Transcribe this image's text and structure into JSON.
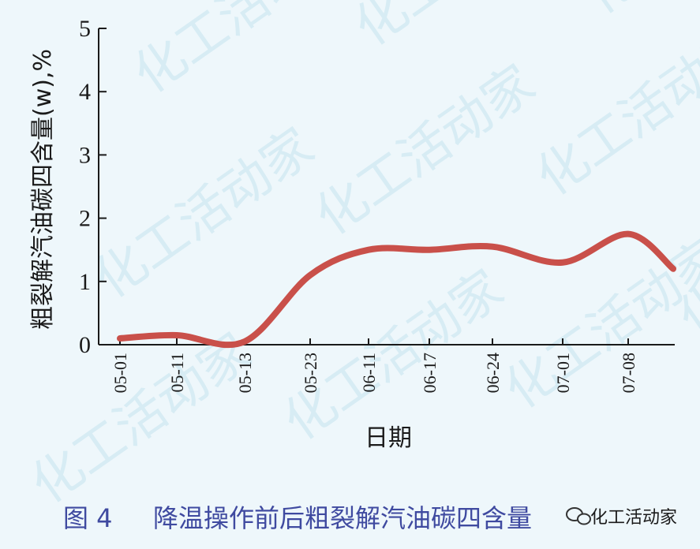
{
  "chart_data": {
    "type": "line",
    "x_categories": [
      "05-01",
      "05-11",
      "05-13",
      "05-23",
      "06-11",
      "06-17",
      "06-24",
      "07-01",
      "07-08"
    ],
    "series": [
      {
        "x": [
          "05-01",
          "05-11",
          "05-13",
          "05-23",
          "06-11",
          "06-17",
          "06-24",
          "07-01",
          "07-08"
        ],
        "values": [
          0.1,
          0.15,
          0.05,
          1.1,
          1.5,
          1.5,
          1.55,
          1.3,
          1.75
        ]
      }
    ],
    "yticks": [
      "0",
      "1",
      "2",
      "3",
      "4",
      "5"
    ],
    "ylim": [
      0,
      5
    ],
    "xlabel": "日期",
    "ylabel": "粗裂解汽油碳四含量(w),%",
    "grid": false,
    "line_color": "#c9504a"
  },
  "caption": {
    "figure_number": "图 4",
    "title": "降温操作前后粗裂解汽油碳四含量"
  },
  "watermark": "化工活动家",
  "logo": {
    "text": "化工活动家"
  },
  "colors": {
    "background": "#eef7fb",
    "caption": "#3f4aa0",
    "axis": "#1a1a1a"
  }
}
